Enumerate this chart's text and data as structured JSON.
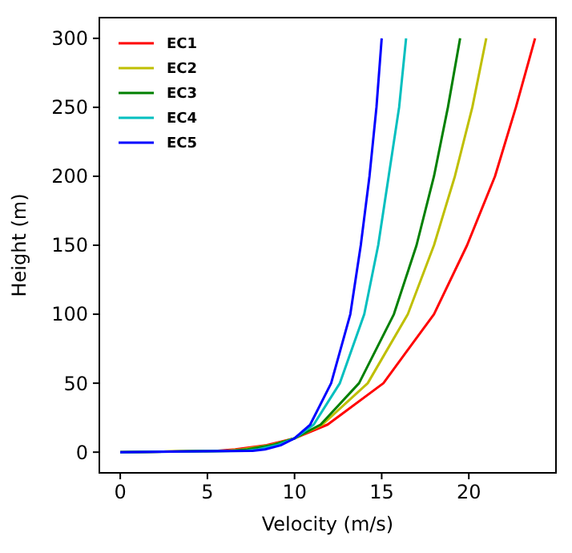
{
  "chart_data": {
    "type": "line",
    "xlabel": "Velocity (m/s)",
    "ylabel": "Height (m)",
    "xlim": [
      -1.2,
      25
    ],
    "ylim": [
      -15,
      315
    ],
    "xticks": [
      0,
      5,
      10,
      15,
      20
    ],
    "yticks": [
      0,
      50,
      100,
      150,
      200,
      250,
      300
    ],
    "legend": "top left",
    "grid": false,
    "series": [
      {
        "name": "EC1",
        "color": "#ff0000",
        "x": [
          0,
          5.6,
          6.6,
          8.4,
          10,
          11.9,
          15.1,
          18.0,
          19.9,
          21.5,
          22.7,
          23.8
        ],
        "values": [
          0,
          1,
          2,
          5,
          10,
          20,
          50,
          100,
          150,
          200,
          250,
          300
        ]
      },
      {
        "name": "EC2",
        "color": "#bfbf00",
        "x": [
          0,
          6.1,
          7.0,
          8.6,
          10,
          11.6,
          14.2,
          16.5,
          18.0,
          19.2,
          20.2,
          21.0
        ],
        "values": [
          0,
          1,
          2,
          5,
          10,
          20,
          50,
          100,
          150,
          200,
          250,
          300
        ]
      },
      {
        "name": "EC3",
        "color": "#008000",
        "x": [
          0,
          6.4,
          7.3,
          8.7,
          10,
          11.5,
          13.7,
          15.7,
          17.0,
          18.0,
          18.8,
          19.5
        ],
        "values": [
          0,
          1,
          2,
          5,
          10,
          20,
          50,
          100,
          150,
          200,
          250,
          300
        ]
      },
      {
        "name": "EC4",
        "color": "#00bfbf",
        "x": [
          0,
          7.2,
          7.9,
          9.0,
          10,
          11.1,
          12.6,
          14.0,
          14.8,
          15.4,
          16.0,
          16.4
        ],
        "values": [
          0,
          1,
          2,
          5,
          10,
          20,
          50,
          100,
          150,
          200,
          250,
          300
        ]
      },
      {
        "name": "EC5",
        "color": "#0000ff",
        "x": [
          0,
          7.6,
          8.3,
          9.2,
          10,
          10.9,
          12.1,
          13.2,
          13.8,
          14.3,
          14.7,
          15.0
        ],
        "values": [
          0,
          1,
          2,
          5,
          10,
          20,
          50,
          100,
          150,
          200,
          250,
          300
        ]
      }
    ]
  }
}
